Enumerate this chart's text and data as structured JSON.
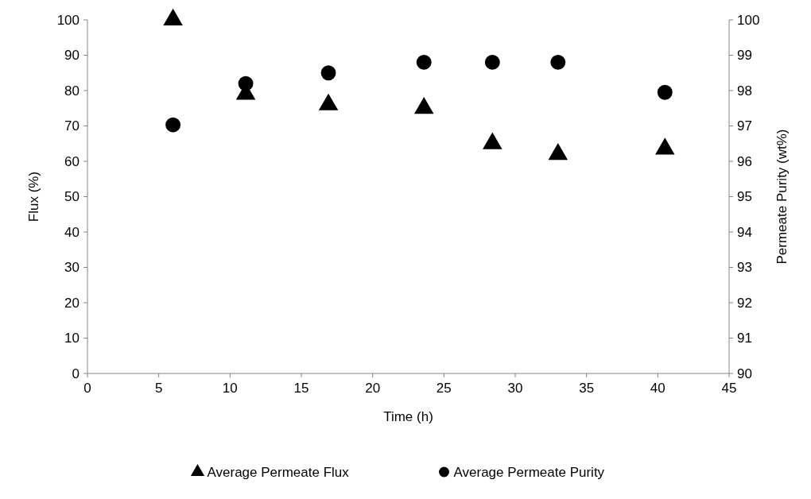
{
  "chart_data": {
    "type": "scatter",
    "xlabel": "Time (h)",
    "ylabel": "Flux (%)",
    "y2label": "Permeate Purity (wt%)",
    "xlim": [
      0,
      45
    ],
    "xticks": [
      0,
      5,
      10,
      15,
      20,
      25,
      30,
      35,
      40,
      45
    ],
    "ylim": [
      0,
      100
    ],
    "yticks": [
      0,
      10,
      20,
      30,
      40,
      50,
      60,
      70,
      80,
      90,
      100
    ],
    "y2lim": [
      90,
      100
    ],
    "y2ticks": [
      90,
      91,
      92,
      93,
      94,
      95,
      96,
      97,
      98,
      99,
      100
    ],
    "legend": "bottom",
    "grid": false,
    "series": [
      {
        "name": "Average Permeate Flux",
        "color": "#000000",
        "marker": "triangle",
        "x": [
          6,
          11.1,
          16.9,
          23.6,
          28.4,
          33,
          40.5
        ],
        "values": [
          100,
          79,
          76,
          75,
          65,
          62,
          63.5
        ]
      },
      {
        "name": "Average Permeate Purity",
        "color": "#000000",
        "marker": "circle",
        "axis": "y2",
        "x": [
          6,
          11.1,
          16.9,
          23.6,
          28.4,
          33,
          40.5
        ],
        "values": [
          97.03,
          98.2,
          98.5,
          98.8,
          98.8,
          98.8,
          97.95
        ]
      }
    ]
  }
}
